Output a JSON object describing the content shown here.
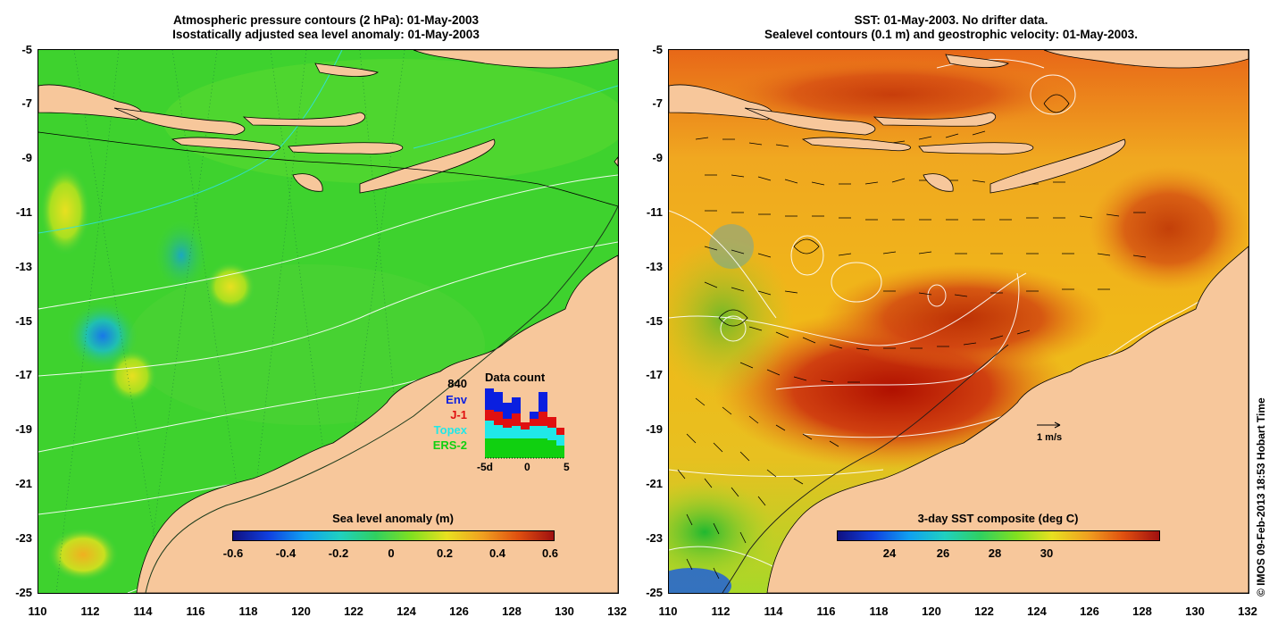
{
  "left_panel": {
    "title_line1": "Atmospheric pressure contours (2 hPa): 01-May-2003",
    "title_line2": "Isostatically adjusted sea level anomaly: 01-May-2003",
    "colorbar_title": "Sea level anomaly (m)",
    "colorbar_ticks": [
      "-0.6",
      "-0.4",
      "-0.2",
      "0",
      "0.2",
      "0.4",
      "0.6"
    ],
    "legend": {
      "count": "840",
      "entries": [
        {
          "label": "Env",
          "color": "#0a1fe0"
        },
        {
          "label": "J-1",
          "color": "#e01010"
        },
        {
          "label": "Topex",
          "color": "#20e8e8"
        },
        {
          "label": "ERS-2",
          "color": "#10d010"
        }
      ],
      "chart_title": "Data count",
      "chart_ticks": [
        "-5d",
        "0",
        "5"
      ]
    }
  },
  "right_panel": {
    "title_line1": "SST: 01-May-2003. No drifter data.",
    "title_line2": "Sealevel contours (0.1 m) and geostrophic velocity: 01-May-2003.",
    "colorbar_title": "3-day SST composite (deg C)",
    "colorbar_ticks": [
      "24",
      "26",
      "28",
      "30"
    ],
    "scale_label": "1 m/s"
  },
  "axes": {
    "y_ticks": [
      "-5",
      "-7",
      "-9",
      "-11",
      "-13",
      "-15",
      "-17",
      "-19",
      "-21",
      "-23",
      "-25"
    ],
    "x_ticks": [
      "110",
      "112",
      "114",
      "116",
      "118",
      "120",
      "122",
      "124",
      "126",
      "128",
      "130",
      "132"
    ]
  },
  "copyright": "© IMOS 09-Feb-2013 18:53 Hobart Time",
  "colors": {
    "land": "#f7c79b",
    "ocean_green": "#3fd42a",
    "sst_orange": "#f0a010",
    "sst_red": "#c02808"
  }
}
